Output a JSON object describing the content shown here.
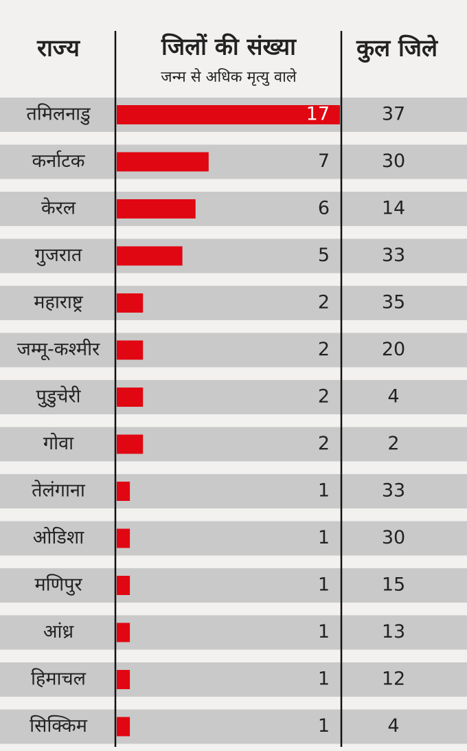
{
  "chart_data": {
    "type": "bar",
    "orientation": "horizontal",
    "headers": {
      "category": "राज्य",
      "value": "जिलों की संख्या",
      "value_subtitle": "जन्म से अधिक मृत्यु वाले",
      "total": "कुल जिले"
    },
    "color": "#e00712",
    "categories": [
      "तमिलनाडु",
      "कर्नाटक",
      "केरल",
      "गुजरात",
      "महाराष्ट्र",
      "जम्मू-कश्मीर",
      "पुडुचेरी",
      "गोवा",
      "तेलंगाना",
      "ओडिशा",
      "मणिपुर",
      "आंध्र",
      "हिमाचल",
      "सिक्किम"
    ],
    "values": [
      17,
      7,
      6,
      5,
      2,
      2,
      2,
      2,
      1,
      1,
      1,
      1,
      1,
      1
    ],
    "totals": [
      37,
      30,
      14,
      33,
      35,
      20,
      4,
      2,
      33,
      30,
      15,
      13,
      12,
      4
    ]
  }
}
